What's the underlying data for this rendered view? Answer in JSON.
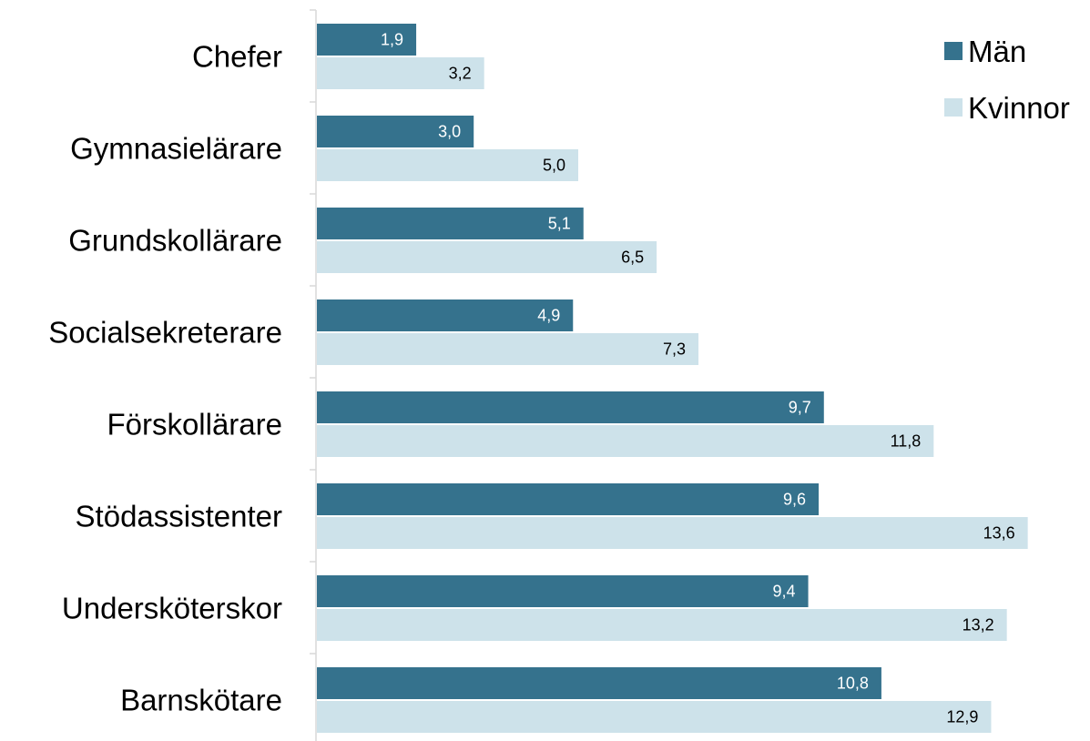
{
  "chart_data": {
    "type": "bar",
    "orientation": "horizontal",
    "categories": [
      "Chefer",
      "Gymnasielärare",
      "Grundskollärare",
      "Socialsekreterare",
      "Förskollärare",
      "Stödassistenter",
      "Undersköterskor",
      "Barnskötare"
    ],
    "series": [
      {
        "name": "Män",
        "color": "#35728d",
        "label_color": "#ffffff",
        "values": [
          1.9,
          3.0,
          5.1,
          4.9,
          9.7,
          9.6,
          9.4,
          10.8
        ],
        "labels": [
          "1,9",
          "3,0",
          "5,1",
          "4,9",
          "9,7",
          "9,6",
          "9,4",
          "10,8"
        ]
      },
      {
        "name": "Kvinnor",
        "color": "#cde2ea",
        "label_color": "#000000",
        "values": [
          3.2,
          5.0,
          6.5,
          7.3,
          11.8,
          13.6,
          13.2,
          12.9
        ],
        "labels": [
          "3,2",
          "5,0",
          "6,5",
          "7,3",
          "11,8",
          "13,6",
          "13,2",
          "12,9"
        ]
      }
    ],
    "xlim": [
      0,
      14
    ],
    "title": "",
    "xlabel": "",
    "ylabel": "",
    "grid": false,
    "legend_position": "top-right"
  }
}
